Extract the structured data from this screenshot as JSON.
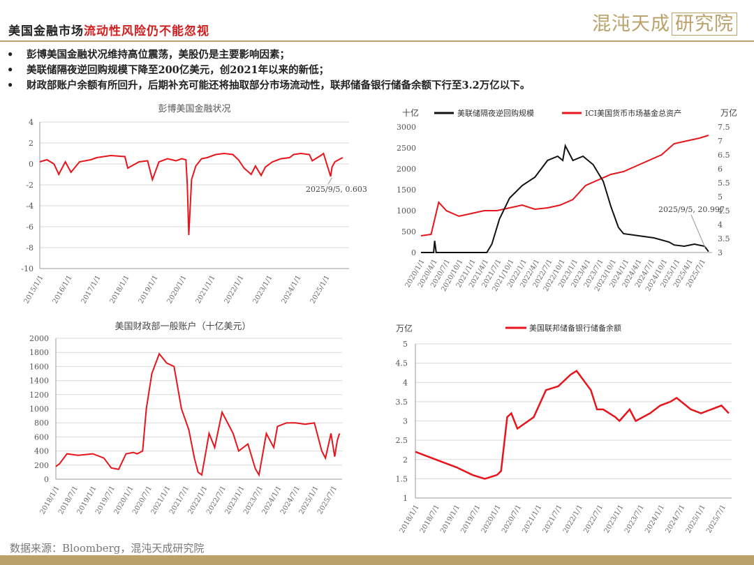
{
  "header": {
    "title_black": "美国金融市场",
    "title_red": "流动性风险仍不能忽视",
    "logo_text": "混沌天成",
    "logo_boxed": "研究院"
  },
  "bullets": [
    {
      "marker": "•",
      "text": "彭博美国金融状况维持高位震荡，美股仍是主要影响因素；"
    },
    {
      "marker": "•",
      "text": "美联储隔夜逆回购规模下降至200亿美元，创2021年以来的新低；"
    },
    {
      "marker": "•",
      "text": "财政部账户余额有所回升，后期补充可能还将抽取部分市场流动性，联邦储备银行储备余额下行至3.2万亿以下。"
    }
  ],
  "source": "数据来源：Bloomberg，混沌天成研究院",
  "colors": {
    "red": "#e8141b",
    "black": "#111111",
    "gold": "#bba26a",
    "grid": "#d9d9d9"
  },
  "chart_data": [
    {
      "id": "fci",
      "type": "line",
      "title": "彭博美国金融状况",
      "ylim": [
        -10,
        4
      ],
      "yticks": [
        "4",
        "2",
        "0",
        "-2",
        "-4",
        "-6",
        "-8",
        "-10"
      ],
      "xticks": [
        "2015/1/1",
        "2016/1/1",
        "2017/1/1",
        "2018/1/1",
        "2019/1/1",
        "2020/1/1",
        "2021/1/1",
        "2022/1/1",
        "2023/1/1",
        "2024/1/1",
        "2025/1/1"
      ],
      "annotation": "2025/9/5, 0.603",
      "series": [
        {
          "color": "#e8141b",
          "x": [
            2015.0,
            2015.25,
            2015.5,
            2015.67,
            2015.9,
            2016.1,
            2016.4,
            2016.8,
            2017.0,
            2017.5,
            2018.0,
            2018.1,
            2018.5,
            2018.8,
            2018.97,
            2019.2,
            2019.5,
            2019.8,
            2020.0,
            2020.15,
            2020.2,
            2020.25,
            2020.35,
            2020.5,
            2020.7,
            2020.9,
            2021.2,
            2021.5,
            2021.8,
            2022.0,
            2022.2,
            2022.45,
            2022.6,
            2022.8,
            2022.95,
            2023.2,
            2023.5,
            2023.8,
            2023.95,
            2024.2,
            2024.5,
            2024.6,
            2024.9,
            2025.0,
            2025.25,
            2025.3,
            2025.4,
            2025.6,
            2025.68
          ],
          "values": [
            0.2,
            0.4,
            0.0,
            -1.0,
            0.2,
            -0.8,
            0.2,
            0.4,
            0.6,
            0.8,
            0.7,
            -0.4,
            0.2,
            0.3,
            -1.5,
            0.2,
            0.5,
            0.3,
            0.5,
            0.4,
            -2.0,
            -6.8,
            -1.5,
            -0.2,
            0.5,
            0.6,
            0.9,
            1.0,
            0.9,
            0.4,
            -0.4,
            -1.0,
            -0.2,
            -1.1,
            -0.3,
            0.2,
            0.5,
            0.6,
            0.9,
            1.0,
            0.9,
            0.3,
            0.8,
            1.0,
            -1.2,
            -0.3,
            0.2,
            0.5,
            0.603
          ]
        }
      ]
    },
    {
      "id": "rrp",
      "type": "line",
      "y_unit_left": "十亿",
      "y_unit_right": "万亿",
      "ylim": [
        0,
        3000
      ],
      "ylim_right": [
        3,
        7.5
      ],
      "yticks": [
        "3000",
        "2500",
        "2000",
        "1500",
        "1000",
        "500",
        "0"
      ],
      "yticks_right": [
        "7.5",
        "7",
        "6.5",
        "6",
        "5.5",
        "5",
        "4.5",
        "4",
        "3.5",
        "3"
      ],
      "xticks": [
        "2020/1/1",
        "2020/4/1",
        "2020/7/1",
        "2020/10/1",
        "2021/1/1",
        "2021/4/1",
        "2021/7/1",
        "2021/10/1",
        "2022/1/1",
        "2022/4/1",
        "2022/7/1",
        "2022/10/1",
        "2023/1/1",
        "2023/4/1",
        "2023/7/1",
        "2023/10/1",
        "2024/1/1",
        "2024/4/1",
        "2024/7/1",
        "2024/10/1",
        "2025/1/1",
        "2025/4/1",
        "2025/7/1"
      ],
      "annotation": "2025/9/5, 20.997",
      "series": [
        {
          "name": "美联储隔夜逆回购规模",
          "axis": "left",
          "color": "#111111",
          "x": [
            2020.0,
            2020.25,
            2020.27,
            2020.3,
            2020.5,
            2021.0,
            2021.2,
            2021.3,
            2021.4,
            2021.55,
            2021.75,
            2022.0,
            2022.25,
            2022.5,
            2022.7,
            2022.8,
            2022.85,
            2023.0,
            2023.2,
            2023.4,
            2023.5,
            2023.6,
            2023.75,
            2023.9,
            2024.0,
            2024.3,
            2024.6,
            2024.9,
            2025.0,
            2025.2,
            2025.4,
            2025.6,
            2025.68
          ],
          "values": [
            0,
            0,
            280,
            0,
            0,
            0,
            0,
            0,
            200,
            800,
            1300,
            1600,
            1800,
            2200,
            2300,
            2200,
            2550,
            2200,
            2300,
            2100,
            1900,
            1700,
            1100,
            600,
            450,
            400,
            350,
            250,
            180,
            150,
            200,
            150,
            21
          ]
        },
        {
          "name": "ICI美国货币市场基金总资产",
          "axis": "right",
          "color": "#e8141b",
          "x": [
            2020.0,
            2020.2,
            2020.35,
            2020.5,
            2020.75,
            2021.0,
            2021.25,
            2021.5,
            2021.75,
            2022.0,
            2022.25,
            2022.5,
            2022.75,
            2023.0,
            2023.25,
            2023.5,
            2023.75,
            2024.0,
            2024.25,
            2024.5,
            2024.75,
            2025.0,
            2025.25,
            2025.5,
            2025.68
          ],
          "values": [
            3.6,
            3.65,
            4.8,
            4.5,
            4.3,
            4.4,
            4.5,
            4.5,
            4.6,
            4.7,
            4.55,
            4.6,
            4.7,
            4.9,
            5.4,
            5.6,
            5.8,
            5.9,
            6.1,
            6.3,
            6.5,
            6.9,
            7.0,
            7.1,
            7.2
          ]
        }
      ]
    },
    {
      "id": "tga",
      "type": "line",
      "title": "美国财政部一般账户（十亿美元）",
      "ylim": [
        0,
        2000
      ],
      "yticks": [
        "2000",
        "1800",
        "1600",
        "1400",
        "1200",
        "1000",
        "800",
        "600",
        "400",
        "200",
        "0"
      ],
      "xticks": [
        "2018/1/1",
        "2018/7/1",
        "2019/1/1",
        "2019/7/1",
        "2020/1/1",
        "2020/7/1",
        "2021/1/1",
        "2021/7/1",
        "2022/1/1",
        "2022/7/1",
        "2023/1/1",
        "2023/7/1",
        "2024/1/1",
        "2024/7/1",
        "2025/1/1",
        "2025/7/1"
      ],
      "series": [
        {
          "color": "#e8141b",
          "x": [
            2018.0,
            2018.1,
            2018.3,
            2018.6,
            2019.0,
            2019.3,
            2019.5,
            2019.7,
            2019.9,
            2020.1,
            2020.2,
            2020.35,
            2020.45,
            2020.6,
            2020.8,
            2021.0,
            2021.2,
            2021.4,
            2021.6,
            2021.75,
            2021.85,
            2021.95,
            2022.15,
            2022.3,
            2022.5,
            2022.8,
            2022.95,
            2023.2,
            2023.4,
            2023.5,
            2023.7,
            2023.9,
            2024.0,
            2024.25,
            2024.5,
            2024.75,
            2025.0,
            2025.2,
            2025.3,
            2025.45,
            2025.55,
            2025.62,
            2025.68
          ],
          "values": [
            180,
            220,
            360,
            340,
            360,
            300,
            160,
            140,
            360,
            380,
            360,
            400,
            1000,
            1500,
            1780,
            1650,
            1600,
            1000,
            700,
            300,
            100,
            60,
            650,
            450,
            950,
            650,
            400,
            500,
            150,
            60,
            650,
            450,
            750,
            800,
            800,
            780,
            800,
            400,
            300,
            650,
            320,
            550,
            650
          ]
        }
      ]
    },
    {
      "id": "reserves",
      "type": "line",
      "y_unit": "万亿",
      "legend": "美国联邦储备银行储备余额",
      "ylim": [
        1,
        5
      ],
      "yticks": [
        "5",
        "4.5",
        "4",
        "3.5",
        "3",
        "2.5",
        "2",
        "1.5",
        "1"
      ],
      "xticks": [
        "2018/1/1",
        "2018/7/1",
        "2019/1/1",
        "2019/7/1",
        "2020/1/1",
        "2020/7/1",
        "2021/1/1",
        "2021/7/1",
        "2022/1/1",
        "2022/7/1",
        "2023/1/1",
        "2023/7/1",
        "2024/1/1",
        "2024/7/1",
        "2025/1/1",
        "2025/7/1"
      ],
      "series": [
        {
          "name": "美国联邦储备银行储备余额",
          "color": "#e8141b",
          "x": [
            2018.0,
            2018.5,
            2019.0,
            2019.4,
            2019.7,
            2020.0,
            2020.1,
            2020.25,
            2020.35,
            2020.5,
            2020.9,
            2021.2,
            2021.5,
            2021.8,
            2021.95,
            2022.3,
            2022.45,
            2022.6,
            2022.9,
            2023.0,
            2023.25,
            2023.4,
            2023.75,
            2024.0,
            2024.25,
            2024.4,
            2024.75,
            2025.0,
            2025.25,
            2025.5,
            2025.68
          ],
          "values": [
            2.2,
            2.0,
            1.8,
            1.6,
            1.5,
            1.6,
            1.7,
            3.1,
            3.2,
            2.8,
            3.1,
            3.8,
            3.9,
            4.2,
            4.3,
            3.8,
            3.3,
            3.3,
            3.1,
            3.0,
            3.3,
            3.0,
            3.2,
            3.4,
            3.5,
            3.6,
            3.3,
            3.2,
            3.3,
            3.4,
            3.2
          ]
        }
      ]
    }
  ]
}
